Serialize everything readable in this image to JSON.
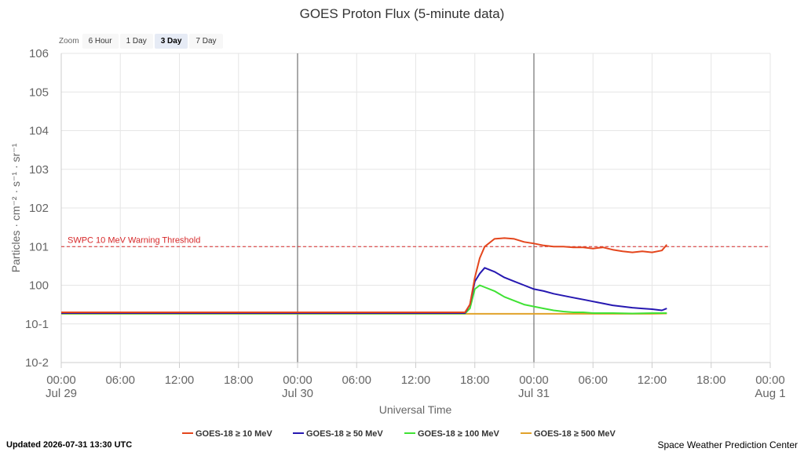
{
  "zoom": {
    "label": "Zoom",
    "buttons": [
      "6 Hour",
      "1 Day",
      "3 Day",
      "7 Day"
    ],
    "active": "3 Day"
  },
  "footer": {
    "updated": "Updated 2026-07-31 13:30 UTC",
    "source": "Space Weather Prediction Center"
  },
  "chart_data": {
    "type": "line",
    "title": "GOES Proton Flux (5-minute data)",
    "xlabel": "Universal Time",
    "ylabel": "Particles · cm⁻² · s⁻¹ · sr⁻¹",
    "y_scale": "log",
    "ylim": [
      -2,
      6
    ],
    "y_tick_exponents": [
      -2,
      -1,
      0,
      1,
      2,
      3,
      4,
      5,
      6
    ],
    "xlim_hours": [
      0,
      72
    ],
    "x_ticks": [
      {
        "hour": 0,
        "label": "00:00",
        "date": "Jul 29"
      },
      {
        "hour": 6,
        "label": "06:00"
      },
      {
        "hour": 12,
        "label": "12:00"
      },
      {
        "hour": 18,
        "label": "18:00"
      },
      {
        "hour": 24,
        "label": "00:00",
        "date": "Jul 30"
      },
      {
        "hour": 30,
        "label": "06:00"
      },
      {
        "hour": 36,
        "label": "12:00"
      },
      {
        "hour": 42,
        "label": "18:00"
      },
      {
        "hour": 48,
        "label": "00:00",
        "date": "Jul 31"
      },
      {
        "hour": 54,
        "label": "06:00"
      },
      {
        "hour": 60,
        "label": "12:00"
      },
      {
        "hour": 66,
        "label": "18:00"
      },
      {
        "hour": 72,
        "label": "00:00",
        "date": "Aug 1"
      }
    ],
    "day_boundaries_hours": [
      24,
      48
    ],
    "threshold": {
      "label": "SWPC 10 MeV Warning Threshold",
      "log10_value": 1,
      "color": "#d62728"
    },
    "series": [
      {
        "name": "GOES-18 ≥ 10 MeV",
        "color": "#e4461d",
        "points": [
          [
            0,
            -0.7
          ],
          [
            6,
            -0.7
          ],
          [
            12,
            -0.7
          ],
          [
            18,
            -0.7
          ],
          [
            24,
            -0.7
          ],
          [
            30,
            -0.7
          ],
          [
            36,
            -0.7
          ],
          [
            41,
            -0.7
          ],
          [
            41.5,
            -0.5
          ],
          [
            42,
            0.2
          ],
          [
            42.5,
            0.7
          ],
          [
            43,
            1.0
          ],
          [
            44,
            1.2
          ],
          [
            45,
            1.22
          ],
          [
            46,
            1.2
          ],
          [
            47,
            1.12
          ],
          [
            48,
            1.08
          ],
          [
            49,
            1.03
          ],
          [
            50,
            1.0
          ],
          [
            51,
            1.0
          ],
          [
            52,
            0.98
          ],
          [
            53,
            0.98
          ],
          [
            54,
            0.95
          ],
          [
            55,
            0.98
          ],
          [
            56,
            0.92
          ],
          [
            57,
            0.88
          ],
          [
            58,
            0.85
          ],
          [
            59,
            0.88
          ],
          [
            60,
            0.85
          ],
          [
            61,
            0.9
          ],
          [
            61.5,
            1.05
          ]
        ]
      },
      {
        "name": "GOES-18 ≥ 50 MeV",
        "color": "#2618b1",
        "points": [
          [
            0,
            -0.72
          ],
          [
            6,
            -0.72
          ],
          [
            12,
            -0.72
          ],
          [
            18,
            -0.72
          ],
          [
            24,
            -0.72
          ],
          [
            30,
            -0.72
          ],
          [
            36,
            -0.72
          ],
          [
            41,
            -0.72
          ],
          [
            41.5,
            -0.5
          ],
          [
            42,
            0.1
          ],
          [
            42.5,
            0.3
          ],
          [
            43,
            0.45
          ],
          [
            44,
            0.35
          ],
          [
            45,
            0.2
          ],
          [
            46,
            0.1
          ],
          [
            47,
            0.0
          ],
          [
            48,
            -0.1
          ],
          [
            49,
            -0.15
          ],
          [
            50,
            -0.22
          ],
          [
            51,
            -0.27
          ],
          [
            52,
            -0.32
          ],
          [
            53,
            -0.37
          ],
          [
            54,
            -0.42
          ],
          [
            55,
            -0.47
          ],
          [
            56,
            -0.52
          ],
          [
            57,
            -0.55
          ],
          [
            58,
            -0.58
          ],
          [
            59,
            -0.6
          ],
          [
            60,
            -0.62
          ],
          [
            61,
            -0.65
          ],
          [
            61.5,
            -0.6
          ]
        ]
      },
      {
        "name": "GOES-18 ≥ 100 MeV",
        "color": "#3fe234",
        "points": [
          [
            0,
            -0.73
          ],
          [
            6,
            -0.73
          ],
          [
            12,
            -0.73
          ],
          [
            18,
            -0.73
          ],
          [
            24,
            -0.73
          ],
          [
            30,
            -0.73
          ],
          [
            36,
            -0.73
          ],
          [
            41,
            -0.73
          ],
          [
            41.5,
            -0.6
          ],
          [
            42,
            -0.1
          ],
          [
            42.5,
            0.0
          ],
          [
            43,
            -0.05
          ],
          [
            44,
            -0.15
          ],
          [
            45,
            -0.3
          ],
          [
            46,
            -0.4
          ],
          [
            47,
            -0.5
          ],
          [
            48,
            -0.55
          ],
          [
            49,
            -0.6
          ],
          [
            50,
            -0.65
          ],
          [
            51,
            -0.68
          ],
          [
            52,
            -0.7
          ],
          [
            53,
            -0.7
          ],
          [
            54,
            -0.72
          ],
          [
            56,
            -0.72
          ],
          [
            58,
            -0.73
          ],
          [
            60,
            -0.72
          ],
          [
            61.5,
            -0.72
          ]
        ]
      },
      {
        "name": "GOES-18 ≥ 500 MeV",
        "color": "#e1a22a",
        "points": [
          [
            0,
            -0.74
          ],
          [
            6,
            -0.74
          ],
          [
            12,
            -0.74
          ],
          [
            18,
            -0.74
          ],
          [
            24,
            -0.74
          ],
          [
            30,
            -0.74
          ],
          [
            36,
            -0.74
          ],
          [
            42,
            -0.74
          ],
          [
            48,
            -0.74
          ],
          [
            54,
            -0.74
          ],
          [
            60,
            -0.74
          ],
          [
            61.5,
            -0.73
          ]
        ]
      }
    ]
  }
}
